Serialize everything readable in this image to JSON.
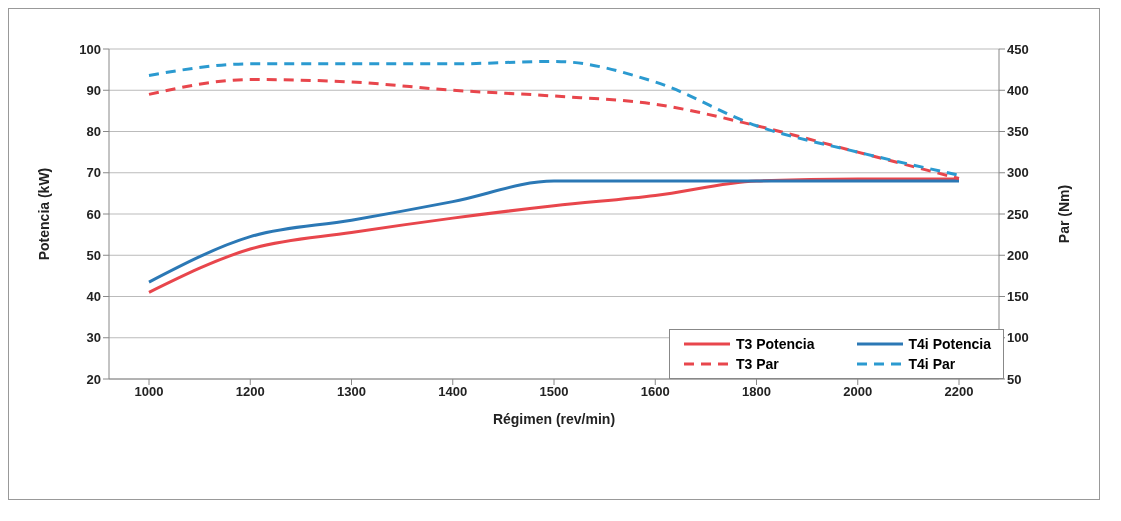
{
  "chart_data": {
    "type": "line",
    "xlabel": "Régimen (rev/min)",
    "ylabel": "Potencia (kW)",
    "y2label": "Par (Nm)",
    "categories": [
      "1000",
      "1200",
      "1300",
      "1400",
      "1500",
      "1600",
      "1800",
      "2000",
      "2200"
    ],
    "series": [
      {
        "name": "T3 Potencia",
        "color": "#e8464c",
        "line_style": "solid",
        "values": [
          41,
          51.5,
          55.5,
          59,
          62,
          64.5,
          68,
          68.5,
          68.5
        ]
      },
      {
        "name": "T4i Potencia",
        "color": "#2b78b5",
        "line_style": "solid",
        "values": [
          43.5,
          54.5,
          58.5,
          63,
          68,
          68,
          68,
          68,
          68
        ]
      },
      {
        "name": "T3 Par",
        "color": "#e8464c",
        "line_style": "dashed",
        "axis": "y2",
        "values": [
          395,
          413,
          410,
          400,
          393,
          383,
          357,
          325,
          293
        ]
      },
      {
        "name": "T4i Par",
        "color": "#2b9ad0",
        "line_style": "dashed",
        "axis": "y2",
        "values": [
          418,
          432,
          432,
          432,
          435,
          410,
          357,
          325,
          297
        ]
      }
    ],
    "ylim": [
      20,
      100
    ],
    "yticks": [
      20,
      30,
      40,
      50,
      60,
      70,
      80,
      90,
      100
    ],
    "y2lim": [
      50,
      450
    ],
    "y2ticks": [
      50,
      100,
      150,
      200,
      250,
      300,
      350,
      400,
      450
    ],
    "grid": "y",
    "legend": "bottom right",
    "marker": "none"
  }
}
